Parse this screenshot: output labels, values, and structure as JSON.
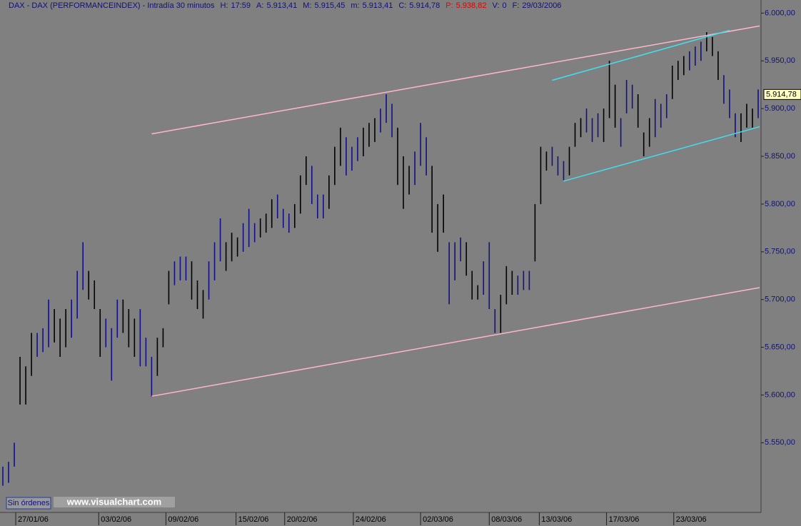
{
  "chart_data": {
    "type": "ohlc-bars",
    "title": "DAX - DAX (PERFORMANCEINDEX) - Intradía 30 minutos",
    "info": [
      {
        "label": "H:",
        "value": "17:59",
        "color": "#10107a"
      },
      {
        "label": "A:",
        "value": "5.913,41",
        "color": "#10107a"
      },
      {
        "label": "M:",
        "value": "5.915,45",
        "color": "#10107a"
      },
      {
        "label": "m:",
        "value": "5.913,41",
        "color": "#10107a"
      },
      {
        "label": "C:",
        "value": "5.914,78",
        "color": "#10107a"
      },
      {
        "label": "P:",
        "value": "5.938,82",
        "color": "#e00000"
      },
      {
        "label": "V:",
        "value": "0",
        "color": "#10107a"
      },
      {
        "label": "F:",
        "value": "29/03/2006",
        "color": "#10107a"
      }
    ],
    "xlim": [
      0,
      133
    ],
    "xticks": [
      {
        "value": 2.75,
        "label": "27/01/06"
      },
      {
        "value": 17.25,
        "label": "03/02/06"
      },
      {
        "value": 29,
        "label": "09/02/06"
      },
      {
        "value": 41.25,
        "label": "15/02/06"
      },
      {
        "value": 49.75,
        "label": "20/02/06"
      },
      {
        "value": 61.75,
        "label": "24/02/06"
      },
      {
        "value": 73.5,
        "label": "02/03/06"
      },
      {
        "value": 85.5,
        "label": "08/03/06"
      },
      {
        "value": 94.25,
        "label": "13/03/06"
      },
      {
        "value": 106,
        "label": "17/03/06"
      },
      {
        "value": 117.75,
        "label": "23/03/06"
      }
    ],
    "ylim": [
      5477,
      6004
    ],
    "yticks": [
      {
        "value": 5550,
        "label": "5.550,00"
      },
      {
        "value": 5600,
        "label": "5.600,00"
      },
      {
        "value": 5650,
        "label": "5.650,00"
      },
      {
        "value": 5700,
        "label": "5.700,00"
      },
      {
        "value": 5750,
        "label": "5.750,00"
      },
      {
        "value": 5800,
        "label": "5.800,00"
      },
      {
        "value": 5850,
        "label": "5.850,00"
      },
      {
        "value": 5900,
        "label": "5.900,00"
      },
      {
        "value": 5950,
        "label": "5.950,00"
      },
      {
        "value": 6000,
        "label": "6.000,00"
      }
    ],
    "high": [
      5525,
      5530,
      5550,
      5640,
      5630,
      5665,
      5665,
      5670,
      5700,
      5690,
      5680,
      5690,
      5700,
      5730,
      5760,
      5730,
      5720,
      5690,
      5680,
      5670,
      5700,
      5700,
      5690,
      5680,
      5690,
      5660,
      5640,
      5660,
      5670,
      5730,
      5740,
      5745,
      5745,
      5740,
      5720,
      5710,
      5740,
      5760,
      5785,
      5760,
      5770,
      5765,
      5780,
      5795,
      5780,
      5785,
      5790,
      5805,
      5810,
      5795,
      5790,
      5800,
      5830,
      5850,
      5840,
      5810,
      5810,
      5830,
      5860,
      5880,
      5870,
      5860,
      5870,
      5880,
      5885,
      5890,
      5900,
      5915,
      5905,
      5880,
      5850,
      5840,
      5855,
      5885,
      5870,
      5840,
      5800,
      5810,
      5760,
      5760,
      5765,
      5760,
      5730,
      5715,
      5740,
      5760,
      5690,
      5705,
      5735,
      5730,
      5725,
      5730,
      5730,
      5800,
      5860,
      5855,
      5860,
      5850,
      5845,
      5860,
      5885,
      5890,
      5900,
      5890,
      5895,
      5900,
      5950,
      5925,
      5890,
      5930,
      5925,
      5915,
      5875,
      5890,
      5910,
      5905,
      5915,
      5945,
      5950,
      5955,
      5960,
      5965,
      5970,
      5980,
      5975,
      5960,
      5935,
      5920,
      5895,
      5895,
      5905,
      5900,
      5920
    ],
    "low": [
      5505,
      5508,
      5525,
      5590,
      5590,
      5620,
      5640,
      5645,
      5650,
      5655,
      5640,
      5650,
      5660,
      5680,
      5710,
      5700,
      5690,
      5640,
      5650,
      5615,
      5660,
      5665,
      5650,
      5640,
      5630,
      5630,
      5598,
      5620,
      5650,
      5695,
      5715,
      5720,
      5720,
      5700,
      5690,
      5680,
      5700,
      5720,
      5740,
      5730,
      5740,
      5745,
      5750,
      5755,
      5760,
      5765,
      5770,
      5775,
      5785,
      5775,
      5770,
      5775,
      5790,
      5820,
      5800,
      5785,
      5785,
      5795,
      5820,
      5840,
      5830,
      5835,
      5845,
      5850,
      5860,
      5865,
      5875,
      5885,
      5870,
      5820,
      5795,
      5810,
      5820,
      5840,
      5830,
      5770,
      5750,
      5770,
      5695,
      5720,
      5740,
      5725,
      5700,
      5700,
      5705,
      5690,
      5665,
      5665,
      5695,
      5705,
      5705,
      5710,
      5710,
      5740,
      5800,
      5835,
      5840,
      5830,
      5825,
      5830,
      5860,
      5870,
      5875,
      5865,
      5870,
      5865,
      5890,
      5880,
      5860,
      5895,
      5900,
      5880,
      5850,
      5860,
      5870,
      5880,
      5890,
      5910,
      5930,
      5935,
      5940,
      5945,
      5950,
      5960,
      5955,
      5930,
      5905,
      5890,
      5870,
      5865,
      5880,
      5880,
      5890
    ],
    "bar_colors": [
      "#10108a",
      "#10108a",
      "#10108a",
      "#000000",
      "#000000",
      "#000000",
      "#10108a",
      "#10108a",
      "#10108a",
      "#000000",
      "#000000",
      "#000000",
      "#10108a",
      "#10108a",
      "#10108a",
      "#000000",
      "#000000",
      "#000000",
      "#10108a",
      "#10108a",
      "#10108a",
      "#000000",
      "#000000",
      "#000000",
      "#10108a",
      "#10108a",
      "#10108a",
      "#000000",
      "#000000",
      "#000000",
      "#10108a",
      "#10108a",
      "#10108a",
      "#000000",
      "#000000",
      "#000000",
      "#10108a",
      "#10108a",
      "#10108a",
      "#000000",
      "#000000",
      "#000000",
      "#10108a",
      "#10108a",
      "#10108a",
      "#000000",
      "#000000",
      "#000000",
      "#10108a",
      "#10108a",
      "#10108a",
      "#000000",
      "#000000",
      "#000000",
      "#10108a",
      "#10108a",
      "#10108a",
      "#000000",
      "#000000",
      "#000000",
      "#10108a",
      "#10108a",
      "#10108a",
      "#000000",
      "#000000",
      "#000000",
      "#10108a",
      "#10108a",
      "#10108a",
      "#000000",
      "#000000",
      "#000000",
      "#10108a",
      "#10108a",
      "#10108a",
      "#000000",
      "#000000",
      "#000000",
      "#10108a",
      "#10108a",
      "#10108a",
      "#000000",
      "#000000",
      "#000000",
      "#10108a",
      "#10108a",
      "#10108a",
      "#000000",
      "#000000",
      "#000000",
      "#10108a",
      "#10108a",
      "#10108a",
      "#000000",
      "#000000",
      "#000000",
      "#10108a",
      "#10108a",
      "#10108a",
      "#000000",
      "#000000",
      "#000000",
      "#10108a",
      "#10108a",
      "#10108a",
      "#000000",
      "#000000",
      "#000000",
      "#10108a",
      "#10108a",
      "#10108a",
      "#000000",
      "#000000",
      "#000000",
      "#10108a",
      "#10108a",
      "#10108a",
      "#000000",
      "#000000",
      "#000000",
      "#10108a",
      "#10108a",
      "#10108a",
      "#000000",
      "#000000",
      "#000000",
      "#10108a",
      "#10108a",
      "#10108a",
      "#000000",
      "#000000",
      "#000000",
      "#10108a",
      "#10108a",
      "#10108a",
      "#000000",
      "#000000",
      "#000000",
      "#10108a"
    ],
    "trendlines": [
      {
        "color": "#ffb6c8",
        "x": [
          26.5,
          132.75
        ],
        "y": [
          5873.5,
          5986.5
        ]
      },
      {
        "color": "#ffb6c8",
        "x": [
          26.5,
          132.75
        ],
        "y": [
          5598.7,
          5712.5
        ]
      },
      {
        "color": "#40e0f0",
        "x": [
          96.5,
          127.5
        ],
        "y": [
          5929.6,
          5982
        ]
      },
      {
        "color": "#40e0f0",
        "x": [
          98.5,
          132.75
        ],
        "y": [
          5824,
          5881
        ]
      }
    ],
    "last_price": {
      "value": 5914.78,
      "label": "5.914,78"
    },
    "order_button": "Sin órdenes",
    "watermark": "www.visualchart.com"
  }
}
